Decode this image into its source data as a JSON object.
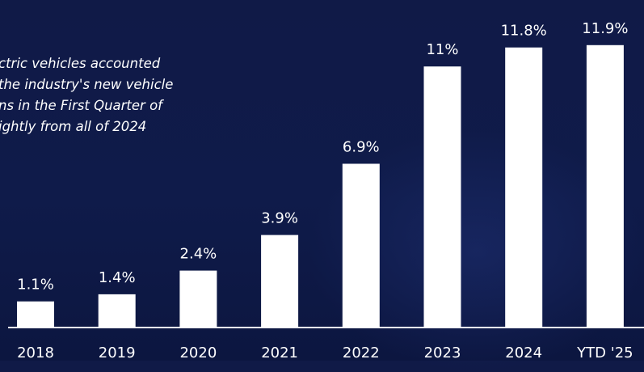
{
  "caption": {
    "lines": [
      "ctric vehicles accounted",
      "the industry's new vehicle",
      "ns in the First Quarter of",
      "ightly from all of 2024"
    ]
  },
  "chart_data": {
    "type": "bar",
    "categories": [
      "2018",
      "2019",
      "2020",
      "2021",
      "2022",
      "2023",
      "2024",
      "YTD '25"
    ],
    "values": [
      1.1,
      1.4,
      2.4,
      3.9,
      6.9,
      11,
      11.8,
      11.9
    ],
    "value_labels": [
      "1.1%",
      "1.4%",
      "2.4%",
      "3.9%",
      "6.9%",
      "11%",
      "11.8%",
      "11.9%"
    ],
    "unit": "%",
    "ylim": [
      0,
      12.2
    ],
    "grid": false,
    "colors": {
      "bar": "#ffffff",
      "text": "#ffffff",
      "axis": "#ffffff",
      "background": "#101a47"
    }
  }
}
